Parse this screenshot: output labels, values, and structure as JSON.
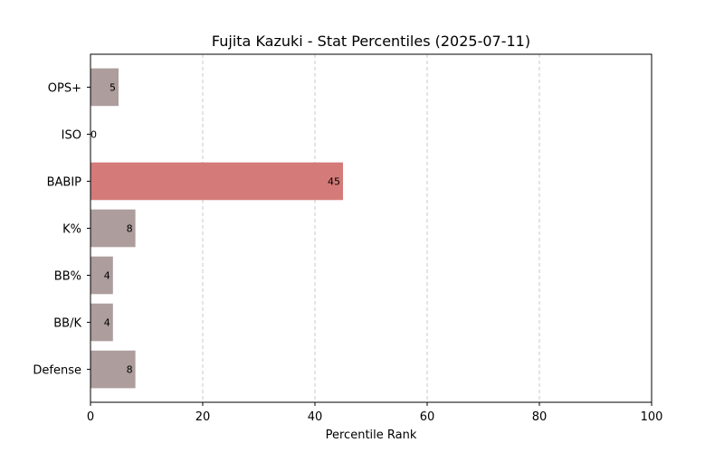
{
  "chart_data": {
    "type": "bar",
    "orientation": "horizontal",
    "title": "Fujita Kazuki - Stat Percentiles (2025-07-11)",
    "xlabel": "Percentile Rank",
    "ylabel": "",
    "xlim": [
      0,
      100
    ],
    "xticks": [
      0,
      20,
      40,
      60,
      80,
      100
    ],
    "grid": "x-dashed",
    "categories": [
      "OPS+",
      "ISO",
      "BABIP",
      "K%",
      "BB%",
      "BB/K",
      "Defense"
    ],
    "values": [
      5,
      0,
      45,
      8,
      4,
      4,
      8
    ],
    "colors": [
      "#ad9d9d",
      "#ad9d9d",
      "#d47b79",
      "#ad9d9d",
      "#ad9d9d",
      "#ad9d9d",
      "#ad9d9d"
    ]
  }
}
